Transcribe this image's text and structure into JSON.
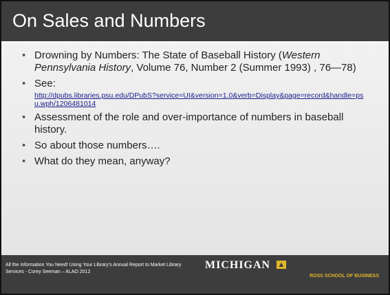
{
  "header": {
    "title": "On Sales and Numbers"
  },
  "bullets": [
    {
      "parts": [
        "Drowning by Numbers: The State of Baseball History (",
        "Western Pennsylvania History",
        ", Volume 76, Number 2 (Summer 1993) , 76—78)"
      ]
    },
    {
      "text": "See:",
      "link": "http://dpubs.libraries.psu.edu/DPubS?service=UI&version=1.0&verb=Display&page=record&handle=psu.wph/1206481014"
    },
    {
      "text": "Assessment of the role and over-importance of numbers in baseball history."
    },
    {
      "text": "So about those numbers…."
    },
    {
      "text": "What do they mean, anyway?"
    }
  ],
  "footer": {
    "text": "All the Information You Need! Using Your Library’s Annual Report to Market Library Services  - Corey Seeman – ALAO 2012",
    "logo": "MICHIGAN",
    "logo_subtitle": "ROSS SCHOOL OF BUSINESS"
  }
}
